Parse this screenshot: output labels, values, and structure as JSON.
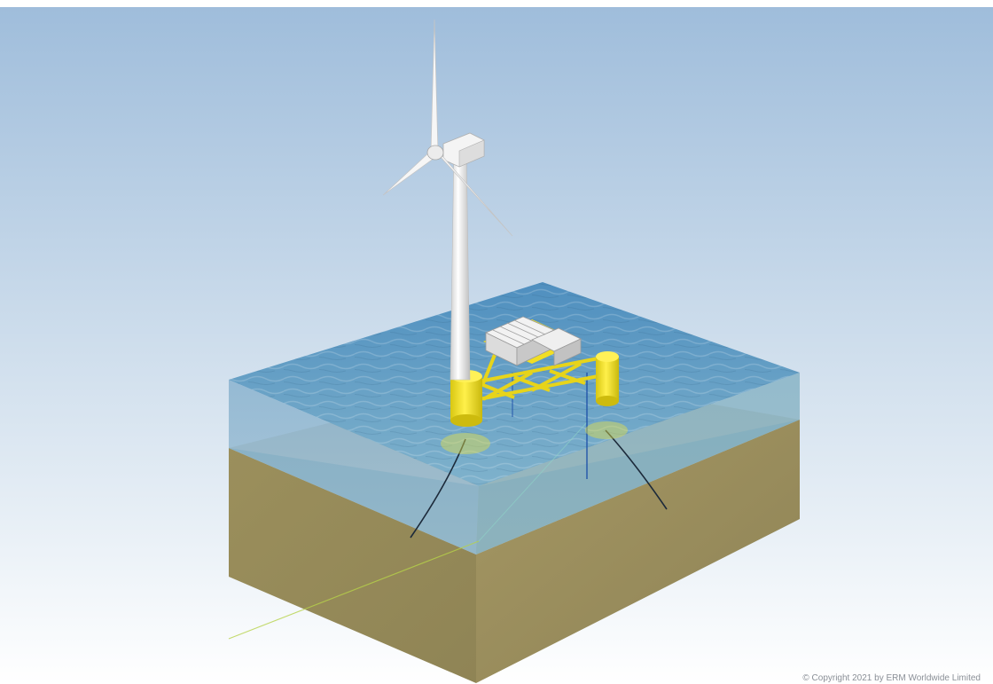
{
  "copyright": "© Copyright 2021 by ERM Worldwide Limited",
  "colors": {
    "sky_top": "#a9c3dd",
    "sky_bottom": "#ffffff",
    "water": "#5f9fc4",
    "water_side": "#8fb6cf",
    "seabed": "#9c8f5a",
    "platform": "#f3e21f",
    "turbine": "#f2f2f2",
    "mooring": "#1c2a3a"
  },
  "icons": {
    "turbine": "wind-turbine-icon",
    "platform": "floating-platform-icon"
  }
}
